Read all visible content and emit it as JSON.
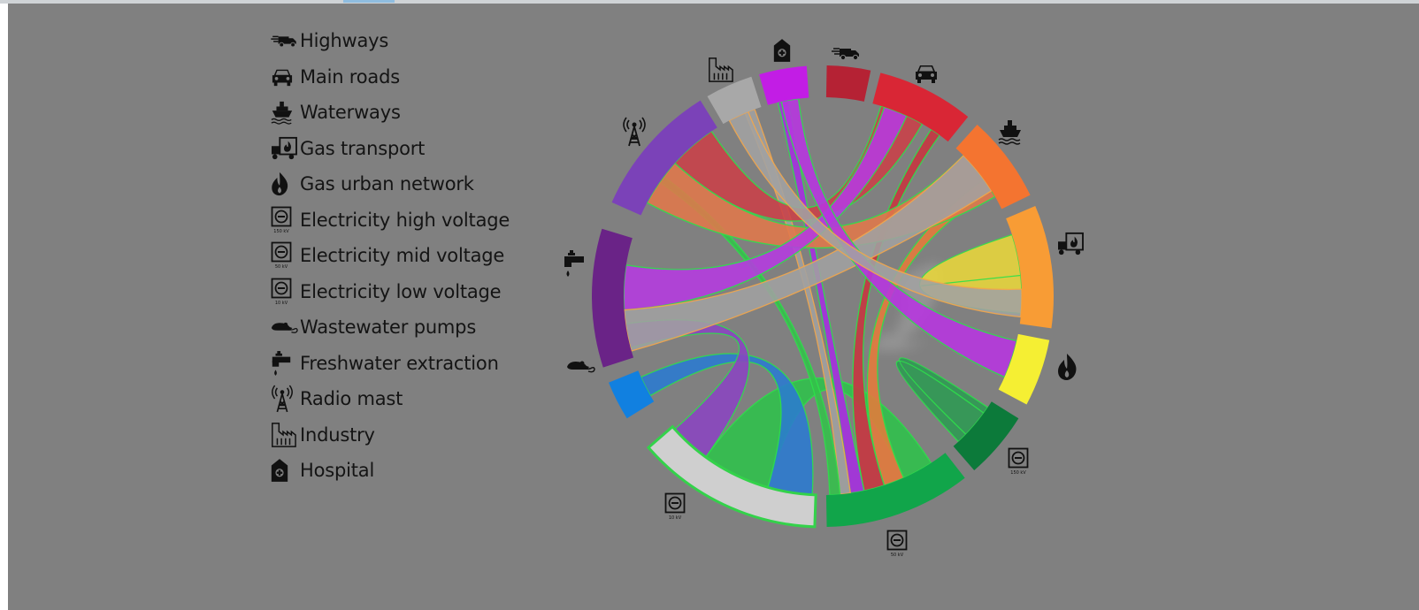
{
  "legend": {
    "items": [
      {
        "label": "Highways",
        "icon": "truck-icon"
      },
      {
        "label": "Main roads",
        "icon": "car-icon"
      },
      {
        "label": "Waterways",
        "icon": "ship-icon"
      },
      {
        "label": "Gas transport",
        "icon": "gas-truck-icon"
      },
      {
        "label": "Gas urban network",
        "icon": "flame-icon"
      },
      {
        "label": "Electricity high voltage",
        "icon": "socket-150kv-icon"
      },
      {
        "label": "Electricity mid voltage",
        "icon": "socket-50kv-icon"
      },
      {
        "label": "Electricity low voltage",
        "icon": "socket-10kv-icon"
      },
      {
        "label": "Wastewater pumps",
        "icon": "rat-icon"
      },
      {
        "label": "Freshwater extraction",
        "icon": "tap-icon"
      },
      {
        "label": "Radio mast",
        "icon": "radio-mast-icon"
      },
      {
        "label": "Industry",
        "icon": "factory-icon"
      },
      {
        "label": "Hospital",
        "icon": "hospital-icon"
      }
    ],
    "socket_labels": {
      "high": "150 kV",
      "mid": "50 kV",
      "low": "10 kV"
    }
  },
  "chord": {
    "groups": [
      {
        "name": "Highways",
        "color": "#b52234",
        "icon": "truck-icon"
      },
      {
        "name": "Main roads",
        "color": "#d92635",
        "icon": "car-icon"
      },
      {
        "name": "Waterways",
        "color": "#f47430",
        "icon": "ship-icon"
      },
      {
        "name": "Gas transport",
        "color": "#f89c35",
        "icon": "gas-truck-icon"
      },
      {
        "name": "Gas urban network",
        "color": "#f5ef33",
        "icon": "flame-icon"
      },
      {
        "name": "Electricity high voltage",
        "color": "#0c7a3a",
        "icon": "socket-150kv-icon"
      },
      {
        "name": "Electricity mid voltage",
        "color": "#11a54a",
        "icon": "socket-50kv-icon"
      },
      {
        "name": "Electricity low voltage",
        "color": "#cfcfcf",
        "icon": "socket-10kv-icon"
      },
      {
        "name": "Wastewater pumps",
        "color": "#1180e0",
        "icon": "rat-icon"
      },
      {
        "name": "Freshwater extraction",
        "color": "#6a2387",
        "icon": "tap-icon"
      },
      {
        "name": "Radio mast",
        "color": "#7b42b8",
        "icon": "radio-mast-icon"
      },
      {
        "name": "Industry",
        "color": "#a8a8a8",
        "icon": "factory-icon"
      },
      {
        "name": "Hospital",
        "color": "#c21de5",
        "icon": "hospital-icon"
      }
    ],
    "ribbons": [
      {
        "source": "Electricity mid voltage",
        "target": "Electricity low voltage",
        "color": "#2ec24a"
      },
      {
        "source": "Electricity mid voltage",
        "target": "Waterways",
        "color": "#e57a3a"
      },
      {
        "source": "Electricity mid voltage",
        "target": "Main roads",
        "color": "#c7343f"
      },
      {
        "source": "Electricity mid voltage",
        "target": "Hospital",
        "color": "#a52ee0"
      },
      {
        "source": "Electricity mid voltage",
        "target": "Industry",
        "color": "#a0a0a0"
      },
      {
        "source": "Electricity mid voltage",
        "target": "Radio mast",
        "color": "#33c04a"
      },
      {
        "source": "Electricity low voltage",
        "target": "Wastewater pumps",
        "color": "#2a7ad0"
      },
      {
        "source": "Electricity low voltage",
        "target": "Freshwater extraction",
        "color": "#8a44c0"
      },
      {
        "source": "Electricity high voltage",
        "target": "Electricity high voltage",
        "color": "#2c9a52"
      },
      {
        "source": "Radio mast",
        "target": "Waterways",
        "color": "#e0784a"
      },
      {
        "source": "Radio mast",
        "target": "Main roads",
        "color": "#c94048"
      },
      {
        "source": "Freshwater extraction",
        "target": "Main roads",
        "color": "#b53ae0"
      },
      {
        "source": "Freshwater extraction",
        "target": "Waterways",
        "color": "#a0a0a0"
      },
      {
        "source": "Gas urban network",
        "target": "Hospital",
        "color": "#b734e0"
      },
      {
        "source": "Gas transport",
        "target": "Gas transport",
        "color": "#e8d63a"
      },
      {
        "source": "Gas transport",
        "target": "Industry",
        "color": "#a2a2a2"
      }
    ]
  }
}
